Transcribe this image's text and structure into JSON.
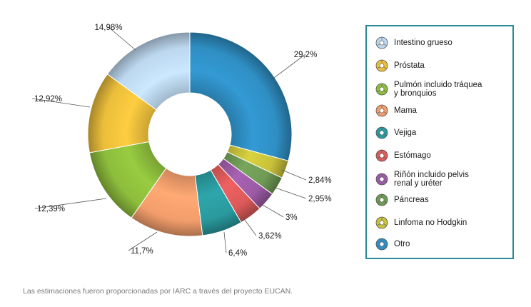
{
  "chart_data": {
    "type": "pie",
    "variant": "donut",
    "title": "",
    "legend_placement": "right",
    "series": [
      {
        "name": "Intestino grueso",
        "value": 14.98,
        "color": "#bcd7ee",
        "label": "14,98%"
      },
      {
        "name": "Próstata",
        "value": 12.92,
        "color": "#ebbe3b",
        "label": "12,92%"
      },
      {
        "name": "Pulmón incluido tráquea y bronquios",
        "value": 12.39,
        "color": "#8dbd3c",
        "label": "12,39%"
      },
      {
        "name": "Mama",
        "value": 11.7,
        "color": "#f29d6b",
        "label": "11,7%"
      },
      {
        "name": "Vejiga",
        "value": 6.4,
        "color": "#2a9a9e",
        "label": "6,4%"
      },
      {
        "name": "Estómago",
        "value": 3.62,
        "color": "#dd5a5a",
        "label": "3,62%"
      },
      {
        "name": "Riñón incluido pelvis renal y uréter",
        "value": 3.0,
        "color": "#9c5ba6",
        "label": "3%"
      },
      {
        "name": "Páncreas",
        "value": 2.95,
        "color": "#6f9a55",
        "label": "2,95%"
      },
      {
        "name": "Linfoma no Hodgkin",
        "value": 2.84,
        "color": "#c9c23a",
        "label": "2,84%"
      },
      {
        "name": "Otro",
        "value": 29.2,
        "color": "#2f8fc4",
        "label": "29,2%"
      }
    ]
  },
  "legend": {
    "items": [
      {
        "lines": [
          "Intestino grueso"
        ],
        "color": "#bcd7ee"
      },
      {
        "lines": [
          "Próstata"
        ],
        "color": "#ebbe3b"
      },
      {
        "lines": [
          "Pulmón incluido tráquea",
          "y bronquios"
        ],
        "color": "#8dbd3c"
      },
      {
        "lines": [
          "Mama"
        ],
        "color": "#f29d6b"
      },
      {
        "lines": [
          "Vejiga"
        ],
        "color": "#2a9a9e"
      },
      {
        "lines": [
          "Estómago"
        ],
        "color": "#dd5a5a"
      },
      {
        "lines": [
          "Riñón incluido pelvis",
          "renal y uréter"
        ],
        "color": "#9c5ba6"
      },
      {
        "lines": [
          "Páncreas"
        ],
        "color": "#6f9a55"
      },
      {
        "lines": [
          "Linfoma no Hodgkin"
        ],
        "color": "#c9c23a"
      },
      {
        "lines": [
          "Otro"
        ],
        "color": "#2f8fc4"
      }
    ],
    "border_color": "#2a8a95"
  },
  "footnote": "Las estimaciones fueron proporcionadas por IARC a través del proyecto EUCAN."
}
